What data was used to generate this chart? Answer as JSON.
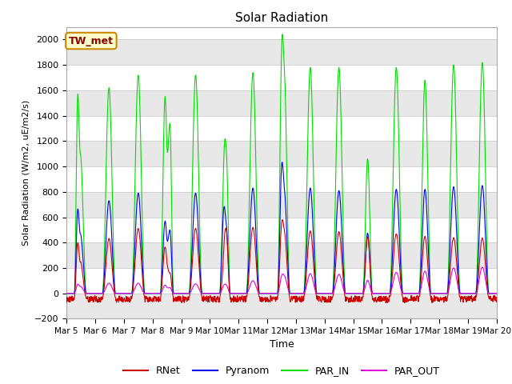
{
  "title": "Solar Radiation",
  "ylabel": "Solar Radiation (W/m2, uE/m2/s)",
  "xlabel": "Time",
  "xlim_start": 0,
  "xlim_end": 360,
  "ylim": [
    -200,
    2100
  ],
  "yticks": [
    -200,
    0,
    200,
    400,
    600,
    800,
    1000,
    1200,
    1400,
    1600,
    1800,
    2000
  ],
  "xtick_labels": [
    "Mar 5",
    "Mar 6",
    "Mar 7",
    "Mar 8",
    "Mar 9",
    "Mar 10",
    "Mar 11",
    "Mar 12",
    "Mar 13",
    "Mar 14",
    "Mar 15",
    "Mar 16",
    "Mar 17",
    "Mar 18",
    "Mar 19",
    "Mar 20"
  ],
  "xtick_positions": [
    0,
    24,
    48,
    72,
    96,
    120,
    144,
    168,
    192,
    216,
    240,
    264,
    288,
    312,
    336,
    360
  ],
  "colors": {
    "RNet": "#cc0000",
    "Pyranom": "#0000ee",
    "PAR_IN": "#00dd00",
    "PAR_OUT": "#dd00dd"
  },
  "fig_bg": "#ffffff",
  "plot_bg": "#ffffff",
  "legend_box_bg": "#ffffcc",
  "legend_box_edge": "#cc8800",
  "legend_label": "TW_met",
  "band_colors": [
    "#e8e8e8",
    "#ffffff"
  ]
}
